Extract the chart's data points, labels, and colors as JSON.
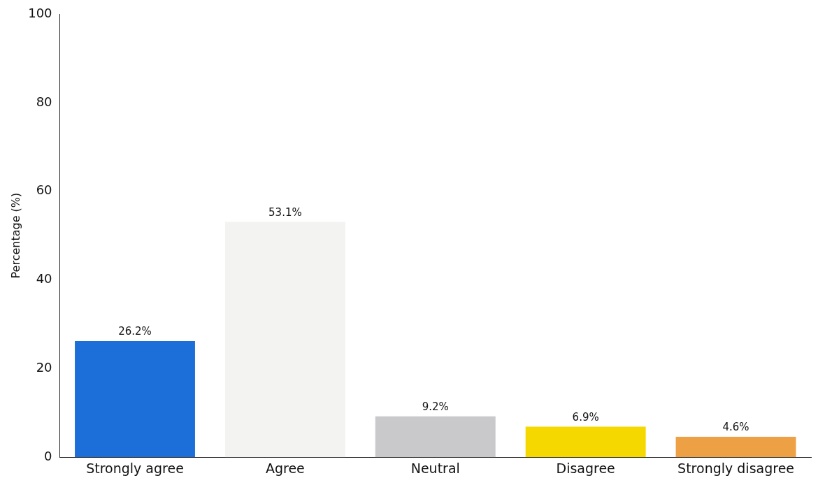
{
  "chart_data": {
    "type": "bar",
    "ylabel": "Percentage (%)",
    "categories": [
      "Strongly agree",
      "Agree",
      "Neutral",
      "Disagree",
      "Strongly disagree"
    ],
    "values": [
      26.2,
      53.1,
      9.2,
      6.9,
      4.6
    ],
    "colors": [
      "#1c6fd8",
      "#f3f3f1",
      "#c9c9cc",
      "#f4d800",
      "#eea044"
    ],
    "value_labels": [
      "26.2%",
      "53.1%",
      "9.2%",
      "6.9%",
      "4.6%"
    ],
    "ylim": [
      0,
      100
    ],
    "yticks": [
      0,
      20,
      40,
      60,
      80,
      100
    ],
    "grid": false,
    "legend": false
  }
}
